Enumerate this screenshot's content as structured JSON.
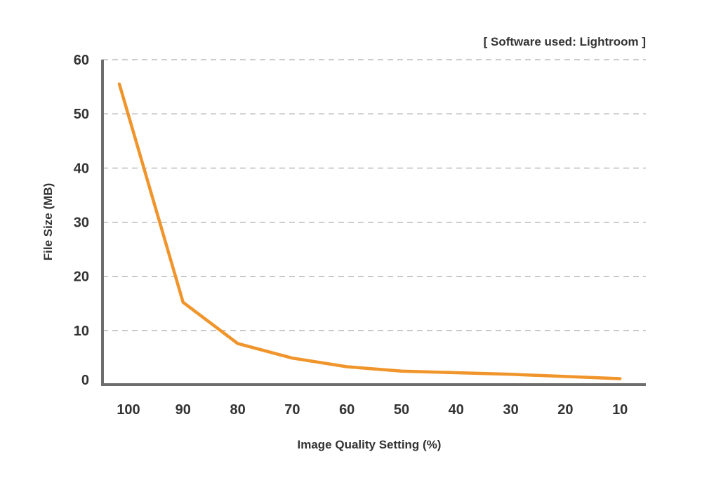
{
  "chart_data": {
    "type": "line",
    "note": "[ Software used: Lightroom ]",
    "xlabel": "Image Quality Setting (%)",
    "ylabel": "File Size (MB)",
    "categories": [
      "100",
      "90",
      "80",
      "70",
      "60",
      "50",
      "40",
      "30",
      "20",
      "10"
    ],
    "series": [
      {
        "values": [
          55.5,
          15.2,
          7.6,
          4.9,
          3.3,
          2.5,
          2.2,
          1.9,
          1.5,
          1.1
        ]
      }
    ],
    "y_ticks": [
      "0",
      "10",
      "20",
      "30",
      "40",
      "50",
      "60"
    ],
    "ylim": [
      0,
      60
    ],
    "grid": true,
    "colors": {
      "line": "#f0952b",
      "axis": "#6d6d6d",
      "grid": "#9a9a9a",
      "text": "#333333"
    }
  }
}
